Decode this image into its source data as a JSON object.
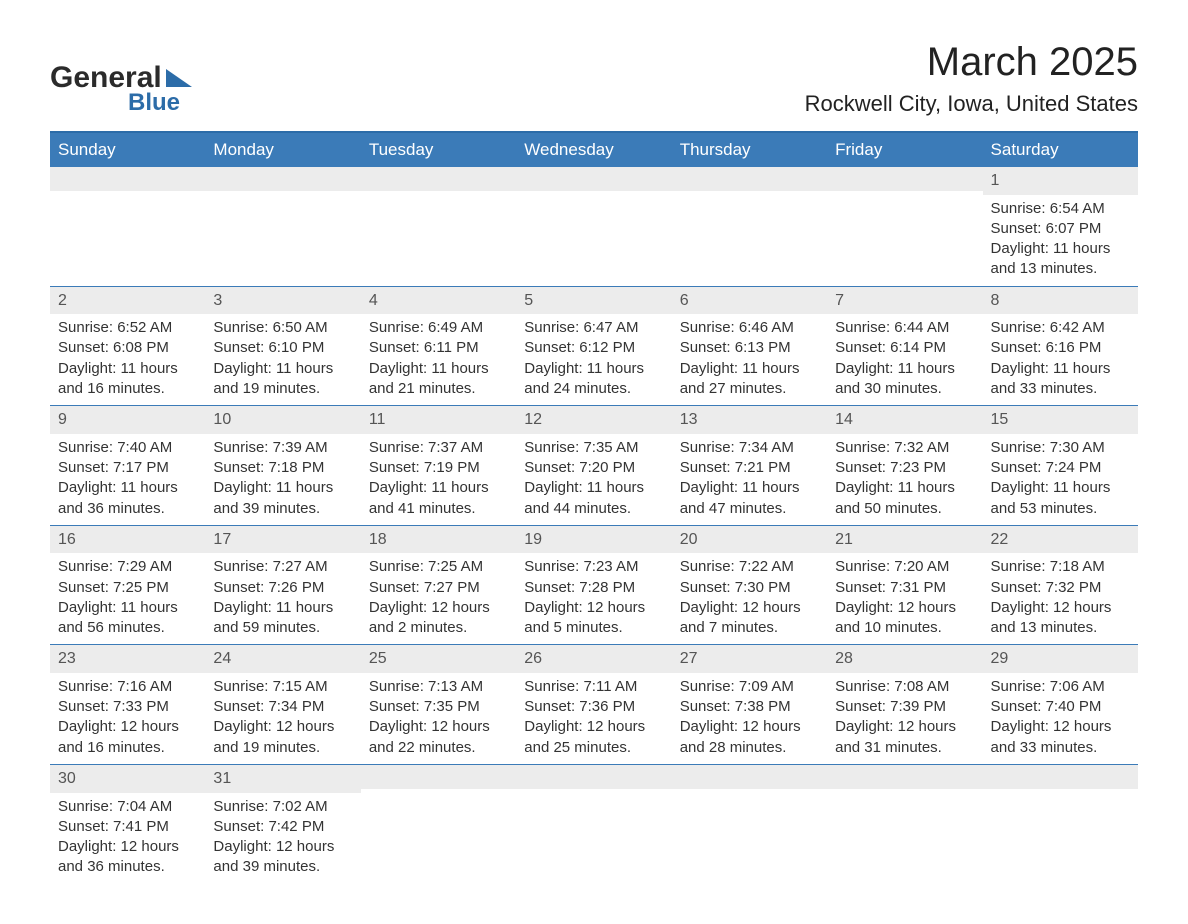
{
  "logo": {
    "line1": "General",
    "line2": "Blue"
  },
  "title": "March 2025",
  "location": "Rockwell City, Iowa, United States",
  "colors": {
    "header_bg": "#3b7bb8",
    "header_text": "#ffffff",
    "daynum_bg": "#ececec",
    "border": "#3b7bb8",
    "logo_accent": "#2c6ca8"
  },
  "weekdays": [
    "Sunday",
    "Monday",
    "Tuesday",
    "Wednesday",
    "Thursday",
    "Friday",
    "Saturday"
  ],
  "layout": {
    "first_weekday_index": 6,
    "days_in_month": 31
  },
  "days": {
    "1": {
      "sunrise": "6:54 AM",
      "sunset": "6:07 PM",
      "daylight": "11 hours and 13 minutes."
    },
    "2": {
      "sunrise": "6:52 AM",
      "sunset": "6:08 PM",
      "daylight": "11 hours and 16 minutes."
    },
    "3": {
      "sunrise": "6:50 AM",
      "sunset": "6:10 PM",
      "daylight": "11 hours and 19 minutes."
    },
    "4": {
      "sunrise": "6:49 AM",
      "sunset": "6:11 PM",
      "daylight": "11 hours and 21 minutes."
    },
    "5": {
      "sunrise": "6:47 AM",
      "sunset": "6:12 PM",
      "daylight": "11 hours and 24 minutes."
    },
    "6": {
      "sunrise": "6:46 AM",
      "sunset": "6:13 PM",
      "daylight": "11 hours and 27 minutes."
    },
    "7": {
      "sunrise": "6:44 AM",
      "sunset": "6:14 PM",
      "daylight": "11 hours and 30 minutes."
    },
    "8": {
      "sunrise": "6:42 AM",
      "sunset": "6:16 PM",
      "daylight": "11 hours and 33 minutes."
    },
    "9": {
      "sunrise": "7:40 AM",
      "sunset": "7:17 PM",
      "daylight": "11 hours and 36 minutes."
    },
    "10": {
      "sunrise": "7:39 AM",
      "sunset": "7:18 PM",
      "daylight": "11 hours and 39 minutes."
    },
    "11": {
      "sunrise": "7:37 AM",
      "sunset": "7:19 PM",
      "daylight": "11 hours and 41 minutes."
    },
    "12": {
      "sunrise": "7:35 AM",
      "sunset": "7:20 PM",
      "daylight": "11 hours and 44 minutes."
    },
    "13": {
      "sunrise": "7:34 AM",
      "sunset": "7:21 PM",
      "daylight": "11 hours and 47 minutes."
    },
    "14": {
      "sunrise": "7:32 AM",
      "sunset": "7:23 PM",
      "daylight": "11 hours and 50 minutes."
    },
    "15": {
      "sunrise": "7:30 AM",
      "sunset": "7:24 PM",
      "daylight": "11 hours and 53 minutes."
    },
    "16": {
      "sunrise": "7:29 AM",
      "sunset": "7:25 PM",
      "daylight": "11 hours and 56 minutes."
    },
    "17": {
      "sunrise": "7:27 AM",
      "sunset": "7:26 PM",
      "daylight": "11 hours and 59 minutes."
    },
    "18": {
      "sunrise": "7:25 AM",
      "sunset": "7:27 PM",
      "daylight": "12 hours and 2 minutes."
    },
    "19": {
      "sunrise": "7:23 AM",
      "sunset": "7:28 PM",
      "daylight": "12 hours and 5 minutes."
    },
    "20": {
      "sunrise": "7:22 AM",
      "sunset": "7:30 PM",
      "daylight": "12 hours and 7 minutes."
    },
    "21": {
      "sunrise": "7:20 AM",
      "sunset": "7:31 PM",
      "daylight": "12 hours and 10 minutes."
    },
    "22": {
      "sunrise": "7:18 AM",
      "sunset": "7:32 PM",
      "daylight": "12 hours and 13 minutes."
    },
    "23": {
      "sunrise": "7:16 AM",
      "sunset": "7:33 PM",
      "daylight": "12 hours and 16 minutes."
    },
    "24": {
      "sunrise": "7:15 AM",
      "sunset": "7:34 PM",
      "daylight": "12 hours and 19 minutes."
    },
    "25": {
      "sunrise": "7:13 AM",
      "sunset": "7:35 PM",
      "daylight": "12 hours and 22 minutes."
    },
    "26": {
      "sunrise": "7:11 AM",
      "sunset": "7:36 PM",
      "daylight": "12 hours and 25 minutes."
    },
    "27": {
      "sunrise": "7:09 AM",
      "sunset": "7:38 PM",
      "daylight": "12 hours and 28 minutes."
    },
    "28": {
      "sunrise": "7:08 AM",
      "sunset": "7:39 PM",
      "daylight": "12 hours and 31 minutes."
    },
    "29": {
      "sunrise": "7:06 AM",
      "sunset": "7:40 PM",
      "daylight": "12 hours and 33 minutes."
    },
    "30": {
      "sunrise": "7:04 AM",
      "sunset": "7:41 PM",
      "daylight": "12 hours and 36 minutes."
    },
    "31": {
      "sunrise": "7:02 AM",
      "sunset": "7:42 PM",
      "daylight": "12 hours and 39 minutes."
    }
  },
  "labels": {
    "sunrise_prefix": "Sunrise: ",
    "sunset_prefix": "Sunset: ",
    "daylight_prefix": "Daylight: "
  }
}
